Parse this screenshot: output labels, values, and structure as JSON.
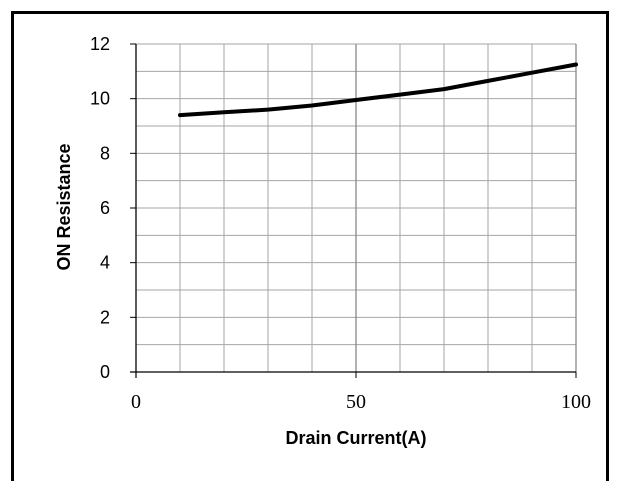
{
  "chart_data": {
    "type": "line",
    "title": "",
    "xlabel": "Drain Current(A)",
    "ylabel": "ON Resistance",
    "xlim": [
      0,
      100
    ],
    "ylim": [
      0,
      12
    ],
    "x_major_ticks": [
      0,
      50,
      100
    ],
    "y_major_ticks": [
      0,
      2,
      4,
      6,
      8,
      10,
      12
    ],
    "x_minor_step": 10,
    "y_minor_step": 1,
    "grid": true,
    "legend": "none",
    "series": [
      {
        "x": [
          10,
          20,
          30,
          40,
          50,
          60,
          70,
          80,
          90,
          100
        ],
        "y": [
          9.4,
          9.5,
          9.6,
          9.75,
          9.95,
          10.15,
          10.35,
          10.65,
          10.95,
          11.25
        ],
        "color": "#000000"
      }
    ]
  }
}
